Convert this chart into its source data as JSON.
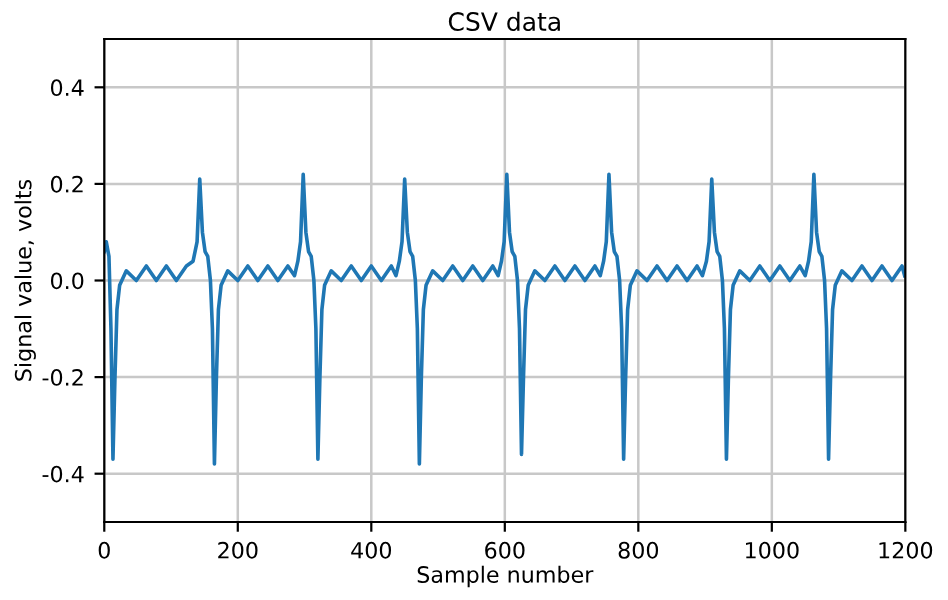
{
  "chart_data": {
    "type": "line",
    "title": "CSV data",
    "xlabel": "Sample number",
    "ylabel": "Signal value, volts",
    "xlim": [
      0,
      1200
    ],
    "xticks": [
      0,
      200,
      400,
      600,
      800,
      1000,
      1200
    ],
    "ylim": [
      -0.5,
      0.5
    ],
    "yticks": [
      -0.4,
      -0.2,
      {
        "value": 0,
        "label": "0.0"
      },
      0.2,
      0.4
    ],
    "grid": true,
    "series": [
      {
        "color": "#1f77b4",
        "x": [
          0,
          3,
          7,
          10,
          13,
          16,
          19,
          23,
          33,
          48,
          63,
          78,
          93,
          108,
          123,
          133,
          139,
          143,
          147,
          151,
          155,
          159,
          162,
          165,
          168,
          171,
          175,
          185,
          200,
          215,
          230,
          245,
          260,
          275,
          285,
          290,
          294,
          298,
          302,
          306,
          310,
          314,
          317,
          320,
          323,
          326,
          330,
          340,
          355,
          370,
          385,
          400,
          415,
          430,
          437,
          442,
          446,
          450,
          454,
          458,
          462,
          466,
          469,
          472,
          475,
          478,
          482,
          492,
          507,
          522,
          537,
          552,
          567,
          582,
          590,
          595,
          599,
          603,
          607,
          611,
          615,
          619,
          622,
          625,
          628,
          631,
          635,
          645,
          660,
          675,
          690,
          705,
          720,
          735,
          743,
          748,
          752,
          756,
          760,
          764,
          768,
          772,
          775,
          778,
          781,
          784,
          788,
          798,
          813,
          828,
          843,
          858,
          873,
          888,
          896,
          902,
          906,
          910,
          914,
          918,
          922,
          926,
          929,
          932,
          935,
          938,
          942,
          952,
          967,
          982,
          997,
          1012,
          1027,
          1042,
          1050,
          1055,
          1059,
          1063,
          1067,
          1071,
          1075,
          1079,
          1082,
          1085,
          1088,
          1091,
          1095,
          1105,
          1120,
          1135,
          1150,
          1165,
          1180,
          1195,
          1199
        ],
        "values": [
          0.06,
          0.08,
          0.05,
          -0.1,
          -0.37,
          -0.2,
          -0.06,
          -0.01,
          0.02,
          0.0,
          0.03,
          0.0,
          0.03,
          0.0,
          0.03,
          0.04,
          0.08,
          0.21,
          0.1,
          0.06,
          0.05,
          0.0,
          -0.1,
          -0.38,
          -0.2,
          -0.06,
          -0.01,
          0.02,
          0.0,
          0.03,
          0.0,
          0.03,
          0.0,
          0.03,
          0.01,
          0.04,
          0.08,
          0.22,
          0.1,
          0.06,
          0.05,
          0.0,
          -0.1,
          -0.37,
          -0.2,
          -0.06,
          -0.01,
          0.02,
          0.0,
          0.03,
          0.0,
          0.03,
          0.0,
          0.03,
          0.01,
          0.04,
          0.08,
          0.21,
          0.1,
          0.06,
          0.05,
          0.0,
          -0.1,
          -0.38,
          -0.2,
          -0.06,
          -0.01,
          0.02,
          0.0,
          0.03,
          0.0,
          0.03,
          0.0,
          0.03,
          0.01,
          0.04,
          0.08,
          0.22,
          0.1,
          0.06,
          0.05,
          0.0,
          -0.1,
          -0.36,
          -0.2,
          -0.06,
          -0.01,
          0.02,
          0.0,
          0.03,
          0.0,
          0.03,
          0.0,
          0.03,
          0.01,
          0.04,
          0.08,
          0.22,
          0.1,
          0.06,
          0.05,
          0.0,
          -0.1,
          -0.37,
          -0.2,
          -0.06,
          -0.01,
          0.02,
          0.0,
          0.03,
          0.0,
          0.03,
          0.0,
          0.03,
          0.01,
          0.04,
          0.08,
          0.21,
          0.1,
          0.06,
          0.05,
          0.0,
          -0.1,
          -0.37,
          -0.2,
          -0.06,
          -0.01,
          0.02,
          0.0,
          0.03,
          0.0,
          0.03,
          0.0,
          0.03,
          0.01,
          0.04,
          0.08,
          0.22,
          0.1,
          0.06,
          0.05,
          0.0,
          -0.1,
          -0.37,
          -0.2,
          -0.06,
          -0.01,
          0.02,
          0.0,
          0.03,
          0.0,
          0.03,
          0.0,
          0.03,
          0.01
        ]
      }
    ]
  }
}
